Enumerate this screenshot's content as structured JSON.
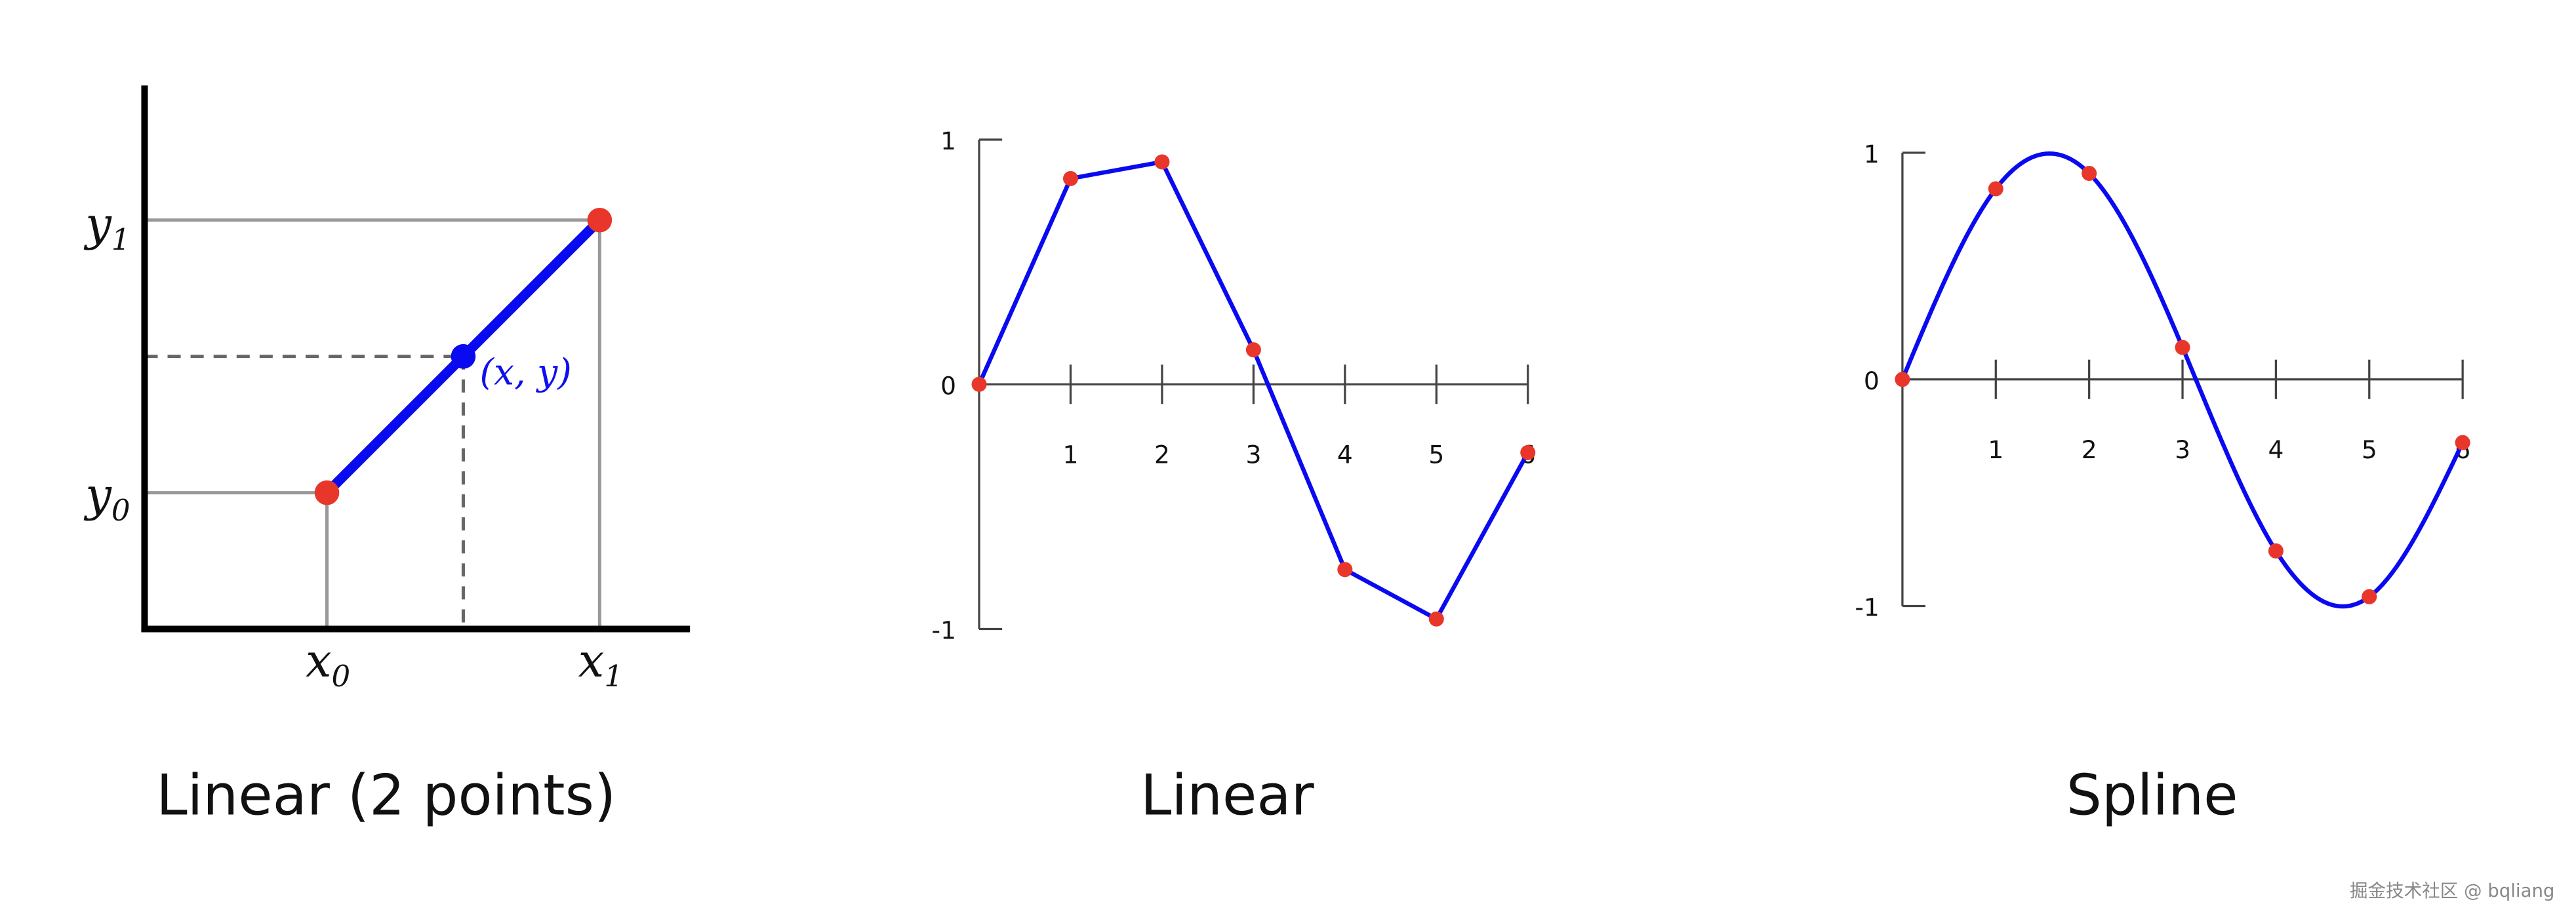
{
  "colors": {
    "line": "#0a0af0",
    "point": "#e8362b",
    "axis": "#444444",
    "guide": "#999999"
  },
  "watermark": "掘金技术社区 @ bqliang",
  "chart_data": [
    {
      "type": "line",
      "title": "Linear (2 points)",
      "points": [
        {
          "x": 0,
          "y": 0
        },
        {
          "x": 1,
          "y": 1
        }
      ],
      "interpolated_point": {
        "x": 0.5,
        "y": 0.5,
        "label": "(x, y)"
      },
      "labels": {
        "y1": {
          "base": "y",
          "sub": "1"
        },
        "y0": {
          "base": "y",
          "sub": "0"
        },
        "x0": {
          "base": "x",
          "sub": "0"
        },
        "x1": {
          "base": "x",
          "sub": "1"
        }
      }
    },
    {
      "type": "line",
      "title": "Linear",
      "x": [
        0,
        1,
        2,
        3,
        4,
        5,
        6
      ],
      "y": [
        0,
        0.841,
        0.909,
        0.141,
        -0.757,
        -0.959,
        -0.279
      ],
      "xticks": [
        "1",
        "2",
        "3",
        "4",
        "5",
        "6"
      ],
      "yticks": [
        "1",
        "0",
        "-1"
      ],
      "xlim": [
        0,
        6
      ],
      "ylim": [
        -1,
        1
      ],
      "grid": false
    },
    {
      "type": "line",
      "title": "Spline",
      "interpolation": "cubic spline",
      "x": [
        0,
        1,
        2,
        3,
        4,
        5,
        6
      ],
      "y": [
        0,
        0.841,
        0.909,
        0.141,
        -0.757,
        -0.959,
        -0.279
      ],
      "xticks": [
        "1",
        "2",
        "3",
        "4",
        "5",
        "6"
      ],
      "yticks": [
        "1",
        "0",
        "-1"
      ],
      "xlim": [
        0,
        6
      ],
      "ylim": [
        -1,
        1
      ],
      "grid": false
    }
  ]
}
